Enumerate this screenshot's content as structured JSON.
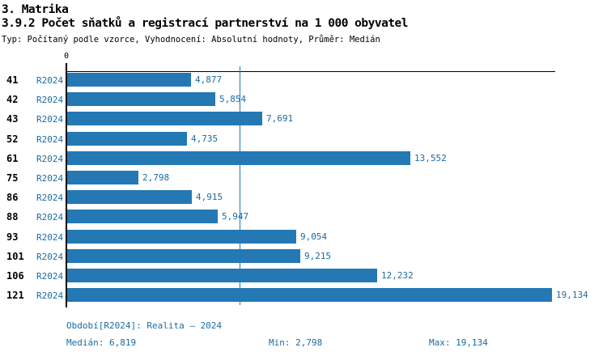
{
  "header": {
    "section_title": "3. Matrika",
    "chart_title": "3.9.2 Počet sňatků a registrací partnerství na 1 000 obyvatel",
    "subtitle": "Typ: Počítaný podle vzorce, Vyhodnocení: Absolutní hodnoty, Průměr: Medián"
  },
  "chart_data": {
    "type": "bar",
    "orientation": "horizontal",
    "title": "3.9.2 Počet sňatků a registrací partnerství na 1 000 obyvatel",
    "series_name": "R2024",
    "origin_label": "0",
    "xlim": [
      0,
      19300
    ],
    "grid": "off",
    "categories": [
      "41",
      "42",
      "43",
      "52",
      "61",
      "75",
      "86",
      "88",
      "93",
      "101",
      "106",
      "121"
    ],
    "rows": [
      {
        "code": "41",
        "period": "R2024",
        "value": 4877,
        "label": "4,877"
      },
      {
        "code": "42",
        "period": "R2024",
        "value": 5854,
        "label": "5,854"
      },
      {
        "code": "43",
        "period": "R2024",
        "value": 7691,
        "label": "7,691"
      },
      {
        "code": "52",
        "period": "R2024",
        "value": 4735,
        "label": "4,735"
      },
      {
        "code": "61",
        "period": "R2024",
        "value": 13552,
        "label": "13,552"
      },
      {
        "code": "75",
        "period": "R2024",
        "value": 2798,
        "label": "2,798"
      },
      {
        "code": "86",
        "period": "R2024",
        "value": 4915,
        "label": "4,915"
      },
      {
        "code": "88",
        "period": "R2024",
        "value": 5947,
        "label": "5,947"
      },
      {
        "code": "93",
        "period": "R2024",
        "value": 9054,
        "label": "9,054"
      },
      {
        "code": "101",
        "period": "R2024",
        "value": 9215,
        "label": "9,215"
      },
      {
        "code": "106",
        "period": "R2024",
        "value": 12232,
        "label": "12,232"
      },
      {
        "code": "121",
        "period": "R2024",
        "value": 19134,
        "label": "19,134"
      }
    ],
    "median_value": 6819,
    "min_value": 2798,
    "max_value": 19134,
    "colors": {
      "bar": "#2478B4",
      "value_text": "#1B6BA3",
      "axis": "#000000",
      "median_line": "#2478B4"
    }
  },
  "footer": {
    "period_line": "Období[R2024]: Realita – 2024",
    "median": "Medián: 6,819",
    "min": "Min: 2,798",
    "max": "Max: 19,134"
  }
}
